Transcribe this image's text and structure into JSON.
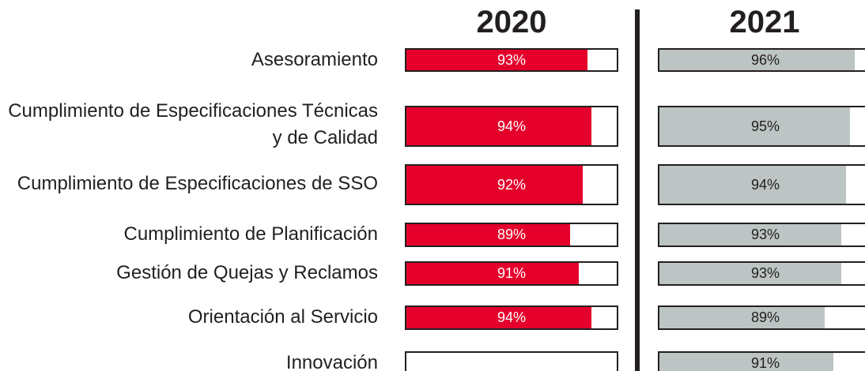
{
  "chart_data": {
    "type": "bar",
    "categories": [
      "Asesoramiento",
      "Cumplimiento de Especificaciones Técnicas y de Calidad",
      "Cumplimiento de Especificaciones de SSO",
      "Cumplimiento de Planificación",
      "Gestión de Quejas y Reclamos",
      "Orientación al Servicio",
      "Innovación"
    ],
    "series": [
      {
        "name": "2020",
        "color": "#e4002b",
        "values": [
          93,
          94,
          92,
          89,
          91,
          94,
          null
        ],
        "value_labels": [
          "93%",
          "94%",
          "92%",
          "89%",
          "91%",
          "94%",
          null
        ]
      },
      {
        "name": "2021",
        "color": "#bcc4c4",
        "values": [
          96,
          95,
          94,
          93,
          93,
          89,
          91
        ],
        "value_labels": [
          "96%",
          "95%",
          "94%",
          "93%",
          "93%",
          "89%",
          "91%"
        ]
      }
    ],
    "xlim": [
      50,
      100
    ]
  }
}
